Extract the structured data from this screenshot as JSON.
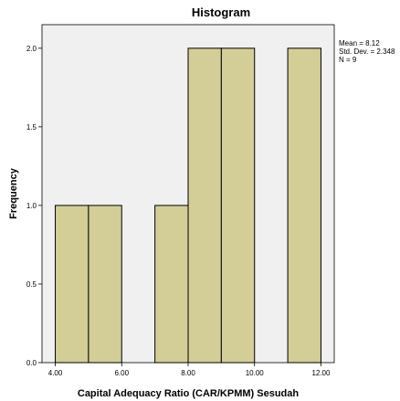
{
  "chart_data": {
    "type": "bar",
    "title": "Histogram",
    "xlabel": "Capital Adequacy Ratio (CAR/KPMM) Sesudah",
    "ylabel": "Frequency",
    "bins": [
      {
        "start": 4,
        "end": 5,
        "count": 1
      },
      {
        "start": 5,
        "end": 6,
        "count": 1
      },
      {
        "start": 6,
        "end": 7,
        "count": 0
      },
      {
        "start": 7,
        "end": 8,
        "count": 1
      },
      {
        "start": 8,
        "end": 9,
        "count": 2
      },
      {
        "start": 9,
        "end": 10,
        "count": 2
      },
      {
        "start": 10,
        "end": 11,
        "count": 0
      },
      {
        "start": 11,
        "end": 12,
        "count": 2
      }
    ],
    "xlim": [
      3.6,
      12.4
    ],
    "ylim": [
      0,
      2.15
    ],
    "x_ticks": [
      "4.00",
      "6.00",
      "8.00",
      "10.00",
      "12.00"
    ],
    "x_tick_values": [
      4,
      6,
      8,
      10,
      12
    ],
    "y_ticks": [
      "0.0",
      "0.5",
      "1.0",
      "1.5",
      "2.0"
    ],
    "y_tick_values": [
      0,
      0.5,
      1.0,
      1.5,
      2.0
    ],
    "stats": {
      "mean": "Mean = 8.12",
      "std": "Std. Dev. = 2.348",
      "n": "N = 9"
    },
    "colors": {
      "bar_fill": "#d3cd98",
      "plot_bg": "#f0f0f0",
      "bar_stroke": "#000000"
    }
  }
}
